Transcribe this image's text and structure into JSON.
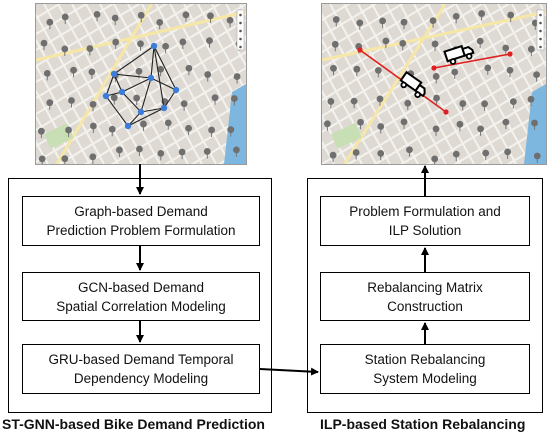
{
  "left": {
    "boxes": [
      {
        "line1": "Graph-based Demand",
        "line2": "Prediction Problem Formulation"
      },
      {
        "line1": "GCN-based Demand",
        "line2": "Spatial Correlation Modeling"
      },
      {
        "line1": "GRU-based Demand  Temporal",
        "line2": "Dependency  Modeling"
      }
    ],
    "caption": "ST-GNN-based Bike Demand Prediction"
  },
  "right": {
    "boxes": [
      {
        "line1": "Problem Formulation and",
        "line2": "ILP Solution"
      },
      {
        "line1": "Rebalancing Matrix",
        "line2": "Construction"
      },
      {
        "line1": "Station Rebalancing",
        "line2": "System Modeling"
      }
    ],
    "caption": "ILP-based Station Rebalancing"
  },
  "colors": {
    "edge": "#222222",
    "node": "#3b7dd8",
    "route": "#e02020",
    "pin": "#6f6f6f",
    "water": "#7db7e0"
  },
  "icons": [
    "map-pin-icon",
    "truck-icon",
    "zoom-control-icon"
  ]
}
